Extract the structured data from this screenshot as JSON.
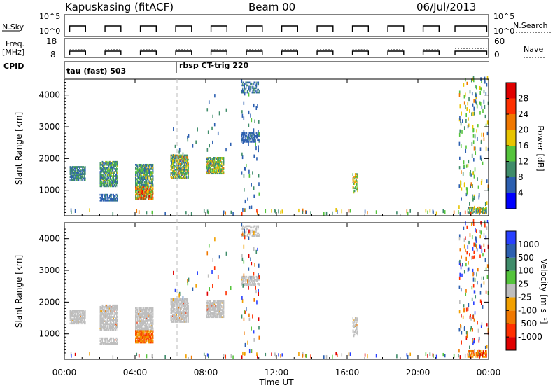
{
  "header": {
    "station": "Kapuskasing (fitACF)",
    "beam": "Beam 00",
    "date": "06/Jul/2013"
  },
  "panels": {
    "nsky_label": "N.Sky",
    "nsky_ticks": [
      "10^5",
      "10^0"
    ],
    "nsearch_ticks": [
      "10^5",
      "10^0"
    ],
    "nsearch_label": "N.Search",
    "freq_label_line1": "Freq.",
    "freq_label_line2": "[MHz]",
    "freq_ticks": [
      "18",
      "8"
    ],
    "nave_ticks": [
      "60",
      "0"
    ],
    "nave_label": "Nave",
    "cpid_label": "CPID",
    "cpid_1": "tau (fast) 503",
    "cpid_2": "rbsp CT-trig 220"
  },
  "colors": {
    "power": [
      "#0000ff",
      "#2c5fb0",
      "#3f8c6a",
      "#55c43c",
      "#e8c400",
      "#f07800",
      "#ff3000",
      "#e00000"
    ],
    "velocity": [
      "#2840ff",
      "#2c5fb0",
      "#3f8c6a",
      "#55c43c",
      "#bebebe",
      "#f2a000",
      "#f07800",
      "#ff3000",
      "#e00000"
    ],
    "ground_scatter": "#bebebe"
  },
  "chart_data": [
    {
      "type": "heatmap",
      "title": "Power",
      "xlabel": "Time UT",
      "ylabel": "Slant Range [km]",
      "x_ticks": [
        "00:00",
        "04:00",
        "08:00",
        "12:00",
        "16:00",
        "20:00",
        "00:00"
      ],
      "xlim": [
        0,
        24
      ],
      "y_ticks": [
        "1000",
        "2000",
        "3000",
        "4000"
      ],
      "ylim": [
        200,
        4500
      ],
      "colorbar_label": "Power [dB]",
      "colorbar_ticks": [
        "4",
        "8",
        "12",
        "16",
        "20",
        "24",
        "28"
      ],
      "clim": [
        0,
        30
      ],
      "blobs": [
        {
          "t0": 0.3,
          "t1": 1.2,
          "r0": 1300,
          "r1": 1750,
          "dens": 0.8,
          "v": [
            4,
            12
          ]
        },
        {
          "t0": 2.0,
          "t1": 3.0,
          "r0": 1100,
          "r1": 1900,
          "dens": 0.75,
          "v": [
            4,
            16
          ]
        },
        {
          "t0": 2.0,
          "t1": 3.0,
          "r0": 650,
          "r1": 850,
          "dens": 0.7,
          "v": [
            4,
            8
          ]
        },
        {
          "t0": 4.0,
          "t1": 5.0,
          "r0": 1100,
          "r1": 1800,
          "dens": 0.8,
          "v": [
            4,
            16
          ]
        },
        {
          "t0": 4.0,
          "t1": 5.0,
          "r0": 700,
          "r1": 1100,
          "dens": 0.85,
          "v": [
            8,
            28
          ]
        },
        {
          "t0": 6.0,
          "t1": 7.0,
          "r0": 1350,
          "r1": 2100,
          "dens": 0.75,
          "v": [
            4,
            20
          ]
        },
        {
          "t0": 8.0,
          "t1": 9.0,
          "r0": 1500,
          "r1": 2000,
          "dens": 0.8,
          "v": [
            6,
            20
          ]
        },
        {
          "t0": 10.0,
          "t1": 11.0,
          "r0": 2500,
          "r1": 2800,
          "dens": 0.65,
          "v": [
            4,
            8
          ]
        },
        {
          "t0": 10.0,
          "t1": 11.0,
          "r0": 4050,
          "r1": 4400,
          "dens": 0.45,
          "v": [
            4,
            10
          ]
        },
        {
          "t0": 22.8,
          "t1": 23.9,
          "r0": 250,
          "r1": 450,
          "dens": 0.7,
          "v": [
            4,
            20
          ]
        },
        {
          "t0": 16.3,
          "t1": 16.6,
          "r0": 900,
          "r1": 1500,
          "dens": 0.5,
          "v": [
            8,
            22
          ]
        }
      ],
      "sparse": [
        {
          "t0": 10.0,
          "t1": 11.0,
          "r0": 200,
          "r1": 4500,
          "n": 60,
          "v": [
            4,
            12
          ]
        },
        {
          "t0": 22.3,
          "t1": 24.0,
          "r0": 300,
          "r1": 4500,
          "n": 160,
          "v": [
            4,
            20
          ]
        },
        {
          "t0": 0.0,
          "t1": 24.0,
          "r0": 200,
          "r1": 330,
          "n": 70,
          "v": [
            4,
            24
          ]
        },
        {
          "t0": 6.0,
          "t1": 7.5,
          "r0": 2000,
          "r1": 3000,
          "n": 12,
          "v": [
            4,
            10
          ]
        },
        {
          "t0": 8.0,
          "t1": 9.5,
          "r0": 2000,
          "r1": 4000,
          "n": 15,
          "v": [
            4,
            10
          ]
        }
      ]
    },
    {
      "type": "heatmap",
      "title": "Velocity",
      "xlabel": "Time UT",
      "ylabel": "Slant Range [km]",
      "x_ticks": [
        "00:00",
        "04:00",
        "08:00",
        "12:00",
        "16:00",
        "20:00",
        "00:00"
      ],
      "xlim": [
        0,
        24
      ],
      "y_ticks": [
        "1000",
        "2000",
        "3000",
        "4000"
      ],
      "ylim": [
        200,
        4500
      ],
      "colorbar_label": "Velocity [m s⁻¹]",
      "colorbar_ticks": [
        "1000",
        "500",
        "100",
        "25",
        "-25",
        "-100",
        "-500",
        "-1000"
      ],
      "blobs": [
        {
          "t0": 0.3,
          "t1": 1.2,
          "r0": 1300,
          "r1": 1750,
          "dens": 0.8,
          "c": "gs"
        },
        {
          "t0": 2.0,
          "t1": 3.0,
          "r0": 1100,
          "r1": 1900,
          "dens": 0.75,
          "c": "gs"
        },
        {
          "t0": 2.0,
          "t1": 3.0,
          "r0": 650,
          "r1": 850,
          "dens": 0.7,
          "c": "gs"
        },
        {
          "t0": 4.0,
          "t1": 5.0,
          "r0": 1100,
          "r1": 1800,
          "dens": 0.8,
          "c": "gs"
        },
        {
          "t0": 4.0,
          "t1": 5.0,
          "r0": 700,
          "r1": 1100,
          "dens": 0.85,
          "c": "neg"
        },
        {
          "t0": 6.0,
          "t1": 7.0,
          "r0": 1350,
          "r1": 2100,
          "dens": 0.75,
          "c": "gs"
        },
        {
          "t0": 8.0,
          "t1": 9.0,
          "r0": 1500,
          "r1": 2000,
          "dens": 0.8,
          "c": "gs"
        },
        {
          "t0": 10.0,
          "t1": 11.0,
          "r0": 2500,
          "r1": 2800,
          "dens": 0.65,
          "c": "gs"
        },
        {
          "t0": 10.0,
          "t1": 11.0,
          "r0": 4050,
          "r1": 4400,
          "dens": 0.45,
          "c": "gs"
        },
        {
          "t0": 22.8,
          "t1": 23.9,
          "r0": 250,
          "r1": 450,
          "dens": 0.7,
          "c": "neg"
        }
      ]
    }
  ]
}
